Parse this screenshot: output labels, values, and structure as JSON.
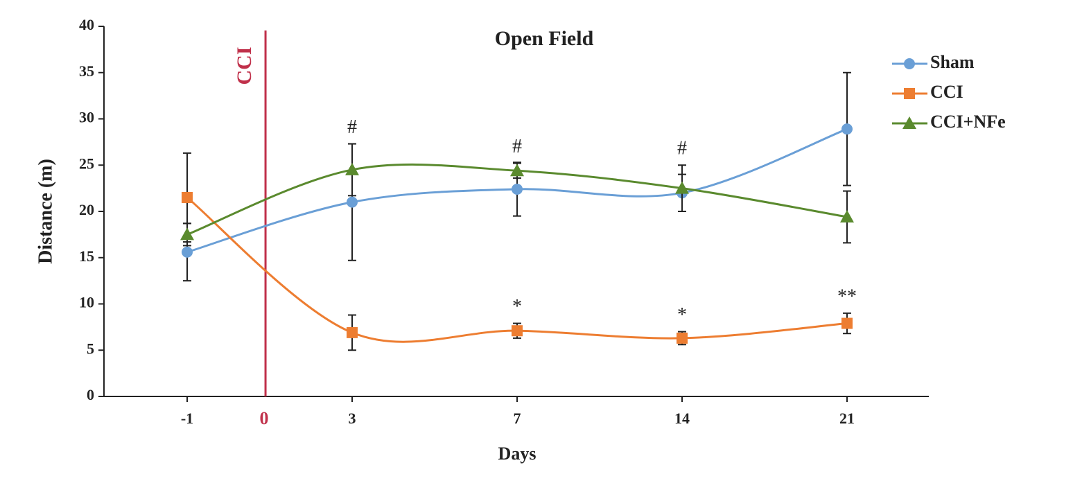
{
  "chart_data": {
    "type": "line",
    "title": "Open Field",
    "x_label": "Days",
    "y_label": "Distance (m)",
    "categories": [
      "-1",
      "3",
      "7",
      "14",
      "21"
    ],
    "ylim": [
      0,
      40
    ],
    "yticks": [
      0,
      5,
      10,
      15,
      20,
      25,
      30,
      35,
      40
    ],
    "smooth": true,
    "legend": "top-right",
    "series": [
      {
        "name": "Sham",
        "color": "#6a9fd6",
        "marker": "circle",
        "values": [
          15.6,
          21.0,
          22.4,
          22.0,
          28.9
        ],
        "errors": [
          3.1,
          6.3,
          2.9,
          2.0,
          6.1
        ]
      },
      {
        "name": "CCI",
        "color": "#ed7d31",
        "marker": "square",
        "values": [
          21.5,
          6.9,
          7.1,
          6.3,
          7.9
        ],
        "errors": [
          4.8,
          1.9,
          0.8,
          0.7,
          1.1
        ]
      },
      {
        "name": "CCI+NFe",
        "color": "#5a8a2e",
        "marker": "triangle",
        "values": [
          17.5,
          24.5,
          24.4,
          22.5,
          19.4
        ],
        "errors": [
          1.2,
          2.8,
          0.8,
          2.5,
          2.8
        ]
      }
    ],
    "event": {
      "label": "CCI",
      "x_label": "0",
      "color": "#c0304a"
    },
    "annotations": [
      {
        "text": "#",
        "x": "3",
        "series": "CCI+NFe"
      },
      {
        "text": "#",
        "x": "7",
        "series": "CCI+NFe"
      },
      {
        "text": "#",
        "x": "14",
        "series": "CCI+NFe"
      },
      {
        "text": "*",
        "x": "7",
        "series": "CCI"
      },
      {
        "text": "*",
        "x": "14",
        "series": "CCI"
      },
      {
        "text": "**",
        "x": "21",
        "series": "CCI"
      }
    ]
  }
}
